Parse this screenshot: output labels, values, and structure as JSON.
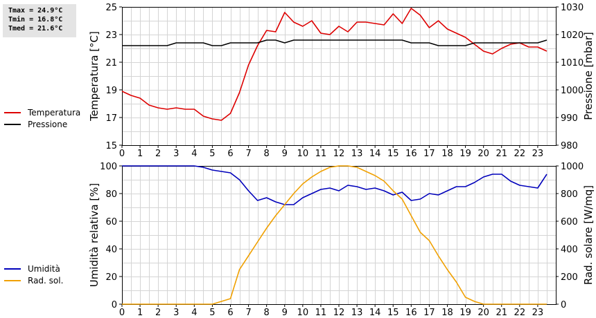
{
  "stats": {
    "tmax": "Tmax = 24.9°C",
    "tmin": "Tmin = 16.8°C",
    "tmed": "Tmed = 21.6°C"
  },
  "legend_top": [
    {
      "label": "Temperatura",
      "color": "#dd0000"
    },
    {
      "label": "Pressione",
      "color": "#000000"
    }
  ],
  "legend_bottom": [
    {
      "label": "Umidità",
      "color": "#0000bb"
    },
    {
      "label": "Rad. sol.",
      "color": "#f0a000"
    }
  ],
  "chart_data": [
    {
      "type": "line",
      "grid": true,
      "xlim": [
        0,
        24
      ],
      "x_ticks": [
        0,
        1,
        2,
        3,
        4,
        5,
        6,
        7,
        8,
        9,
        10,
        11,
        12,
        13,
        14,
        15,
        16,
        17,
        18,
        19,
        20,
        21,
        22,
        23
      ],
      "ylabel": "Temperatura [°C]",
      "ylim": [
        15,
        25
      ],
      "y_ticks": [
        15,
        17,
        19,
        21,
        23,
        25
      ],
      "y2label": "Pressione [mbar]",
      "y2lim": [
        980,
        1030
      ],
      "y2_ticks": [
        980,
        990,
        1000,
        1010,
        1020,
        1030
      ],
      "series": [
        {
          "name": "Temperatura",
          "axis": "left",
          "color": "#dd0000",
          "x": [
            0,
            0.5,
            1,
            1.5,
            2,
            2.5,
            3,
            3.5,
            4,
            4.5,
            5,
            5.5,
            6,
            6.5,
            7,
            7.5,
            8,
            8.5,
            9,
            9.5,
            10,
            10.5,
            11,
            11.5,
            12,
            12.5,
            13,
            13.5,
            14,
            14.5,
            15,
            15.5,
            16,
            16.5,
            17,
            17.5,
            18,
            18.5,
            19,
            19.5,
            20,
            20.5,
            21,
            21.5,
            22,
            22.5,
            23,
            23.5
          ],
          "values": [
            18.9,
            18.6,
            18.4,
            17.9,
            17.7,
            17.6,
            17.7,
            17.6,
            17.6,
            17.1,
            16.9,
            16.8,
            17.3,
            18.8,
            20.8,
            22.2,
            23.3,
            23.2,
            24.6,
            23.9,
            23.6,
            24.0,
            23.1,
            23.0,
            23.6,
            23.2,
            23.9,
            23.9,
            23.8,
            23.7,
            24.5,
            23.8,
            24.9,
            24.4,
            23.5,
            24.0,
            23.4,
            23.1,
            22.8,
            22.3,
            21.8,
            21.6,
            22.0,
            22.3,
            22.4,
            22.1,
            22.1,
            21.8
          ]
        },
        {
          "name": "Pressione",
          "axis": "right",
          "color": "#000000",
          "x": [
            0,
            0.5,
            1,
            1.5,
            2,
            2.5,
            3,
            3.5,
            4,
            4.5,
            5,
            5.5,
            6,
            6.5,
            7,
            7.5,
            8,
            8.5,
            9,
            9.5,
            10,
            10.5,
            11,
            11.5,
            12,
            12.5,
            13,
            13.5,
            14,
            14.5,
            15,
            15.5,
            16,
            16.5,
            17,
            17.5,
            18,
            18.5,
            19,
            19.5,
            20,
            20.5,
            21,
            21.5,
            22,
            22.5,
            23,
            23.5
          ],
          "values": [
            1016,
            1016,
            1016,
            1016,
            1016,
            1016,
            1017,
            1017,
            1017,
            1017,
            1016,
            1016,
            1017,
            1017,
            1017,
            1017,
            1018,
            1018,
            1017,
            1018,
            1018,
            1018,
            1018,
            1018,
            1018,
            1018,
            1018,
            1018,
            1018,
            1018,
            1018,
            1018,
            1017,
            1017,
            1017,
            1016,
            1016,
            1016,
            1016,
            1017,
            1017,
            1017,
            1017,
            1017,
            1017,
            1017,
            1017,
            1018
          ]
        }
      ]
    },
    {
      "type": "line",
      "grid": true,
      "xlim": [
        0,
        24
      ],
      "x_ticks": [
        0,
        1,
        2,
        3,
        4,
        5,
        6,
        7,
        8,
        9,
        10,
        11,
        12,
        13,
        14,
        15,
        16,
        17,
        18,
        19,
        20,
        21,
        22,
        23
      ],
      "ylabel": "Umidità relativa [%]",
      "ylim": [
        0,
        100
      ],
      "y_ticks": [
        0,
        20,
        40,
        60,
        80,
        100
      ],
      "y2label": "Rad. solare [W/mq]",
      "y2lim": [
        0,
        1000
      ],
      "y2_ticks": [
        0,
        200,
        400,
        600,
        800,
        1000
      ],
      "series": [
        {
          "name": "Umidità",
          "axis": "left",
          "color": "#0000bb",
          "x": [
            0,
            0.5,
            1,
            1.5,
            2,
            2.5,
            3,
            3.5,
            4,
            4.5,
            5,
            5.5,
            6,
            6.5,
            7,
            7.5,
            8,
            8.5,
            9,
            9.5,
            10,
            10.5,
            11,
            11.5,
            12,
            12.5,
            13,
            13.5,
            14,
            14.5,
            15,
            15.5,
            16,
            16.5,
            17,
            17.5,
            18,
            18.5,
            19,
            19.5,
            20,
            20.5,
            21,
            21.5,
            22,
            22.5,
            23,
            23.5
          ],
          "values": [
            100,
            100,
            100,
            100,
            100,
            100,
            100,
            100,
            100,
            99,
            97,
            96,
            95,
            90,
            82,
            75,
            77,
            74,
            72,
            72,
            77,
            80,
            83,
            84,
            82,
            86,
            85,
            83,
            84,
            82,
            79,
            81,
            75,
            76,
            80,
            79,
            82,
            85,
            85,
            88,
            92,
            94,
            94,
            89,
            86,
            85,
            84,
            94
          ]
        },
        {
          "name": "Rad. sol.",
          "axis": "right",
          "color": "#f0a000",
          "x": [
            0,
            0.5,
            1,
            1.5,
            2,
            2.5,
            3,
            3.5,
            4,
            4.5,
            5,
            5.5,
            6,
            6.5,
            7,
            7.5,
            8,
            8.5,
            9,
            9.5,
            10,
            10.5,
            11,
            11.5,
            12,
            12.5,
            13,
            13.5,
            14,
            14.5,
            15,
            15.5,
            16,
            16.5,
            17,
            17.5,
            18,
            18.5,
            19,
            19.5,
            20,
            20.5,
            21,
            21.5,
            22,
            22.5,
            23,
            23.5
          ],
          "values": [
            0,
            0,
            0,
            0,
            0,
            0,
            0,
            0,
            0,
            0,
            0,
            20,
            40,
            250,
            350,
            450,
            550,
            640,
            720,
            800,
            870,
            920,
            960,
            990,
            1000,
            1000,
            990,
            960,
            930,
            890,
            820,
            760,
            640,
            520,
            460,
            350,
            250,
            160,
            50,
            20,
            0,
            0,
            0,
            0,
            0,
            0,
            0,
            0
          ]
        }
      ]
    }
  ]
}
